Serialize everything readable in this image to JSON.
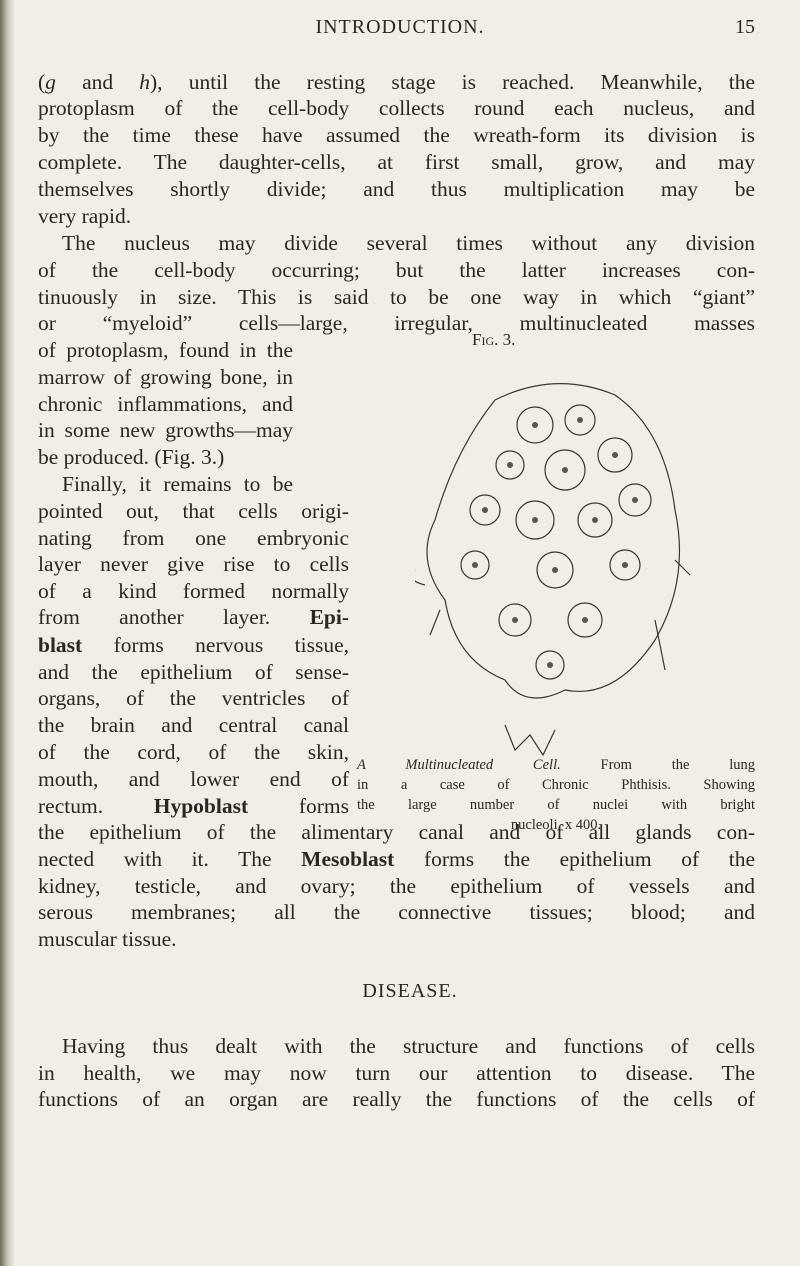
{
  "header": {
    "title": "INTRODUCTION.",
    "page_number": "15"
  },
  "paragraphs": [
    {
      "lines": [
        [
          "(",
          {
            "italic": "g"
          },
          " and ",
          {
            "italic": "h"
          },
          "), until the resting stage is reached. Meanwhile, the"
        ],
        [
          "protoplasm of the cell-body collects round each nucleus, and"
        ],
        [
          "by the time these have assumed the wreath-form its division is"
        ],
        [
          "complete. The daughter-cells, at first small, grow, and may"
        ],
        [
          "themselves shortly divide; and thus multiplication may be"
        ],
        [
          "very rapid."
        ]
      ]
    },
    {
      "lines": [
        [
          "The nucleus may divide several times without any division"
        ],
        [
          "of the cell-body occurring; but the latter increases con-"
        ],
        [
          "tinuously in size. This is said to be one way in which “giant”"
        ],
        [
          "or “myeloid” cells—large, irregular, multinucleated masses"
        ],
        [
          "of protoplasm, found in the"
        ],
        [
          "marrow of growing bone, in"
        ],
        [
          "chronic inflammations, and"
        ],
        [
          "in some new growths—may"
        ],
        [
          "be produced. (Fig. 3.)"
        ]
      ]
    },
    {
      "lines": [
        [
          "Finally, it remains to be"
        ],
        [
          "pointed out, that cells origi-"
        ],
        [
          "nating from one embryonic"
        ],
        [
          "layer never give rise to cells"
        ],
        [
          "of a kind formed normally"
        ],
        [
          "from another layer. ",
          {
            "bold": "Epi-"
          }
        ],
        [
          {
            "bold": "blast"
          },
          " forms nervous tissue,"
        ],
        [
          "and the epithelium of sense-"
        ],
        [
          "organs, of the ventricles of"
        ],
        [
          "the brain and central canal"
        ],
        [
          "of the cord, of the skin,"
        ],
        [
          "mouth, and lower end of"
        ],
        [
          "rectum. ",
          {
            "bold": "Hypoblast"
          },
          " forms"
        ],
        [
          "the epithelium of the alimentary canal and of all glands con-"
        ],
        [
          "nected with it. The ",
          {
            "bold": "Mesoblast"
          },
          " forms the epithelium of the"
        ],
        [
          "kidney, testicle, and ovary; the epithelium of vessels and"
        ],
        [
          "serous membranes; all the connective tissues; blood; and"
        ],
        [
          "muscular tissue."
        ]
      ]
    },
    {
      "lines": [
        [
          "Having thus dealt with the structure and functions of cells"
        ],
        [
          "in health, we may now turn our attention to disease. The"
        ],
        [
          "functions of an organ are really the functions of the cells of"
        ]
      ]
    }
  ],
  "heading": "DISEASE.",
  "figure": {
    "label": "Fig. 3.",
    "caption": [
      [
        {
          "italic": "A Multinucleated Cell."
        },
        " From the lung"
      ],
      [
        "in a case of Chronic Phthisis. Showing"
      ],
      [
        "the large number of nuclei with bright"
      ],
      [
        "nucleoli. x 400."
      ]
    ]
  }
}
